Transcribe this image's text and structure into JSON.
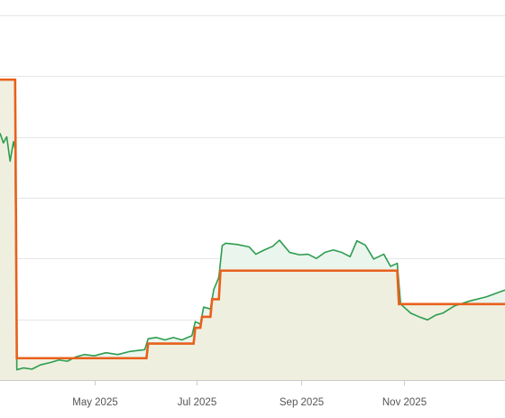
{
  "chart_data": {
    "type": "line",
    "title": "",
    "xlabel": "",
    "ylabel": "",
    "x_axis": {
      "type": "date",
      "range": [
        "2025-03-06",
        "2025-12-31"
      ],
      "ticks": [
        {
          "date": "2025-05-01",
          "label": "May 2025"
        },
        {
          "date": "2025-07-01",
          "label": "Jul 2025"
        },
        {
          "date": "2025-09-01",
          "label": "Sep 2025"
        },
        {
          "date": "2025-11-01",
          "label": "Nov 2025"
        }
      ]
    },
    "y_axis": {
      "range": [
        0,
        6.25
      ],
      "gridlines": [
        1,
        2,
        3,
        4,
        5,
        6
      ],
      "tick_labels_visible": false
    },
    "grid": true,
    "legend": "none",
    "colors": {
      "stepped_line": "#e8601c",
      "stepped_fill": "#efeedd",
      "noisy_line": "#2e9d4f",
      "noisy_fill": "#eaf5ee",
      "gridline": "#e6e6e6",
      "baseline": "#cccccc"
    },
    "series": [
      {
        "style": "step",
        "points": [
          {
            "x": "2025-03-06",
            "y": 4.94
          },
          {
            "x": "2025-03-15",
            "y": 4.94
          },
          {
            "x": "2025-03-16",
            "y": 0.36
          },
          {
            "x": "2025-06-01",
            "y": 0.36
          },
          {
            "x": "2025-06-02",
            "y": 0.6
          },
          {
            "x": "2025-06-29",
            "y": 0.6
          },
          {
            "x": "2025-06-30",
            "y": 0.86
          },
          {
            "x": "2025-07-03",
            "y": 0.86
          },
          {
            "x": "2025-07-04",
            "y": 1.04
          },
          {
            "x": "2025-07-09",
            "y": 1.04
          },
          {
            "x": "2025-07-10",
            "y": 1.33
          },
          {
            "x": "2025-07-14",
            "y": 1.33
          },
          {
            "x": "2025-07-15",
            "y": 1.8
          },
          {
            "x": "2025-10-28",
            "y": 1.8
          },
          {
            "x": "2025-10-29",
            "y": 1.25
          },
          {
            "x": "2025-12-31",
            "y": 1.25
          }
        ]
      },
      {
        "style": "line",
        "points": [
          {
            "x": "2025-03-06",
            "y": 4.06
          },
          {
            "x": "2025-03-08",
            "y": 3.9
          },
          {
            "x": "2025-03-10",
            "y": 4.0
          },
          {
            "x": "2025-03-12",
            "y": 3.6
          },
          {
            "x": "2025-03-14",
            "y": 3.92
          },
          {
            "x": "2025-03-15",
            "y": 3.8
          },
          {
            "x": "2025-03-16",
            "y": 0.17
          },
          {
            "x": "2025-03-20",
            "y": 0.2
          },
          {
            "x": "2025-03-25",
            "y": 0.18
          },
          {
            "x": "2025-03-30",
            "y": 0.25
          },
          {
            "x": "2025-04-05",
            "y": 0.29
          },
          {
            "x": "2025-04-10",
            "y": 0.33
          },
          {
            "x": "2025-04-15",
            "y": 0.31
          },
          {
            "x": "2025-04-20",
            "y": 0.38
          },
          {
            "x": "2025-04-25",
            "y": 0.42
          },
          {
            "x": "2025-05-01",
            "y": 0.4
          },
          {
            "x": "2025-05-08",
            "y": 0.45
          },
          {
            "x": "2025-05-15",
            "y": 0.42
          },
          {
            "x": "2025-05-22",
            "y": 0.47
          },
          {
            "x": "2025-05-31",
            "y": 0.5
          },
          {
            "x": "2025-06-02",
            "y": 0.68
          },
          {
            "x": "2025-06-07",
            "y": 0.7
          },
          {
            "x": "2025-06-12",
            "y": 0.66
          },
          {
            "x": "2025-06-17",
            "y": 0.7
          },
          {
            "x": "2025-06-22",
            "y": 0.66
          },
          {
            "x": "2025-06-28",
            "y": 0.73
          },
          {
            "x": "2025-06-30",
            "y": 0.96
          },
          {
            "x": "2025-07-03",
            "y": 0.92
          },
          {
            "x": "2025-07-05",
            "y": 1.2
          },
          {
            "x": "2025-07-09",
            "y": 1.17
          },
          {
            "x": "2025-07-11",
            "y": 1.49
          },
          {
            "x": "2025-07-14",
            "y": 1.69
          },
          {
            "x": "2025-07-16",
            "y": 2.21
          },
          {
            "x": "2025-07-18",
            "y": 2.25
          },
          {
            "x": "2025-07-25",
            "y": 2.23
          },
          {
            "x": "2025-08-01",
            "y": 2.19
          },
          {
            "x": "2025-08-05",
            "y": 2.07
          },
          {
            "x": "2025-08-10",
            "y": 2.14
          },
          {
            "x": "2025-08-15",
            "y": 2.2
          },
          {
            "x": "2025-08-19",
            "y": 2.3
          },
          {
            "x": "2025-08-25",
            "y": 2.1
          },
          {
            "x": "2025-08-31",
            "y": 2.06
          },
          {
            "x": "2025-09-05",
            "y": 2.07
          },
          {
            "x": "2025-09-10",
            "y": 2.0
          },
          {
            "x": "2025-09-15",
            "y": 2.1
          },
          {
            "x": "2025-09-20",
            "y": 2.14
          },
          {
            "x": "2025-09-25",
            "y": 2.1
          },
          {
            "x": "2025-09-30",
            "y": 2.03
          },
          {
            "x": "2025-10-04",
            "y": 2.29
          },
          {
            "x": "2025-10-09",
            "y": 2.22
          },
          {
            "x": "2025-10-14",
            "y": 1.99
          },
          {
            "x": "2025-10-20",
            "y": 2.07
          },
          {
            "x": "2025-10-24",
            "y": 1.87
          },
          {
            "x": "2025-10-28",
            "y": 1.92
          },
          {
            "x": "2025-10-30",
            "y": 1.25
          },
          {
            "x": "2025-11-05",
            "y": 1.1
          },
          {
            "x": "2025-11-10",
            "y": 1.04
          },
          {
            "x": "2025-11-15",
            "y": 0.99
          },
          {
            "x": "2025-11-20",
            "y": 1.07
          },
          {
            "x": "2025-11-24",
            "y": 1.1
          },
          {
            "x": "2025-12-01",
            "y": 1.22
          },
          {
            "x": "2025-12-10",
            "y": 1.3
          },
          {
            "x": "2025-12-20",
            "y": 1.37
          },
          {
            "x": "2025-12-31",
            "y": 1.48
          }
        ]
      }
    ]
  }
}
